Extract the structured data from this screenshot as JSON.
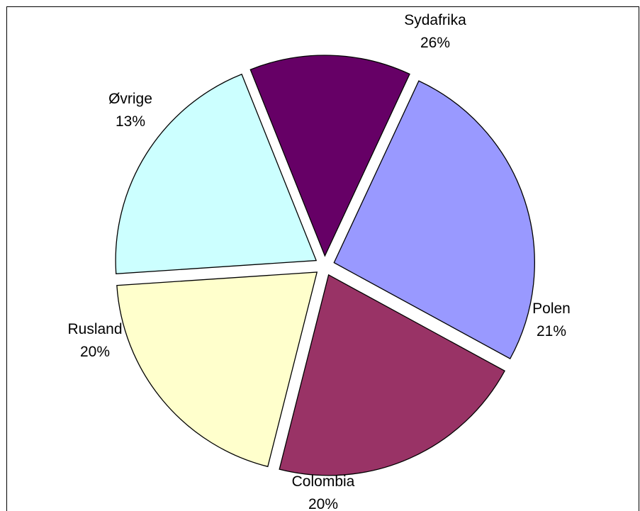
{
  "chart_data": {
    "type": "pie",
    "title": "",
    "slices": [
      {
        "label": "Sydafrika",
        "value": 26,
        "value_label": "26%",
        "color": "#9999FF",
        "exploded": true
      },
      {
        "label": "Polen",
        "value": 21,
        "value_label": "21%",
        "color": "#993366",
        "exploded": true
      },
      {
        "label": "Colombia",
        "value": 20,
        "value_label": "20%",
        "color": "#FFFFCC",
        "exploded": true
      },
      {
        "label": "Rusland",
        "value": 20,
        "value_label": "20%",
        "color": "#CCFFFF",
        "exploded": true
      },
      {
        "label": "Øvrige",
        "value": 13,
        "value_label": "13%",
        "color": "#660066",
        "exploded": true
      }
    ],
    "legend": "none",
    "data_labels": "category name and percentage"
  }
}
